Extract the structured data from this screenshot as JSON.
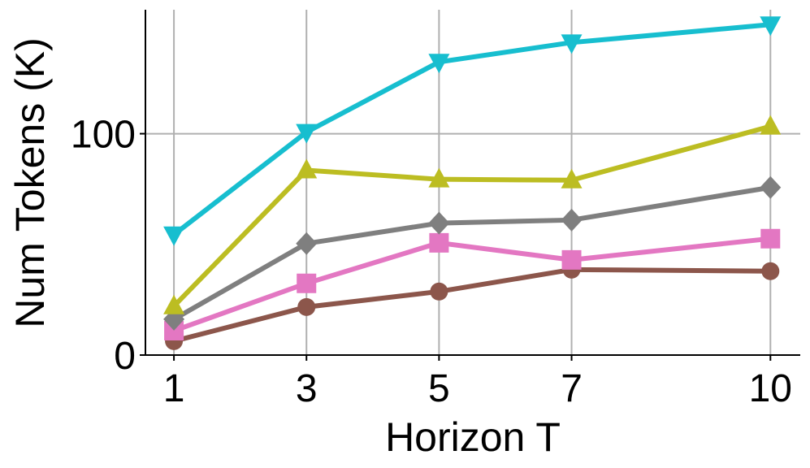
{
  "chart_data": {
    "type": "line",
    "xlabel": "Horizon T",
    "ylabel": "Num Tokens (K)",
    "x": [
      1,
      3,
      5,
      7,
      10
    ],
    "series": [
      {
        "color": "#8c564b",
        "marker": "circle",
        "values": [
          6.3,
          21.7,
          28.7,
          38.6,
          37.9
        ]
      },
      {
        "color": "#e377c2",
        "marker": "square",
        "values": [
          11.0,
          32.4,
          50.7,
          43.0,
          52.6
        ]
      },
      {
        "color": "#7f7f7f",
        "marker": "diamond",
        "values": [
          16.2,
          50.4,
          59.6,
          61.0,
          75.7
        ]
      },
      {
        "color": "#bcbd22",
        "marker": "triangle-up",
        "values": [
          22.1,
          83.5,
          79.4,
          79.0,
          103.3
        ]
      },
      {
        "color": "#17becf",
        "marker": "triangle-down",
        "values": [
          54.4,
          100.7,
          132.4,
          141.2,
          149.3
        ]
      }
    ],
    "xlim": [
      0.57,
      10.45
    ],
    "xticks": [
      1,
      3,
      5,
      7,
      10
    ],
    "ylim": [
      0,
      156
    ],
    "yticks": [
      0,
      100
    ],
    "grid": true
  }
}
